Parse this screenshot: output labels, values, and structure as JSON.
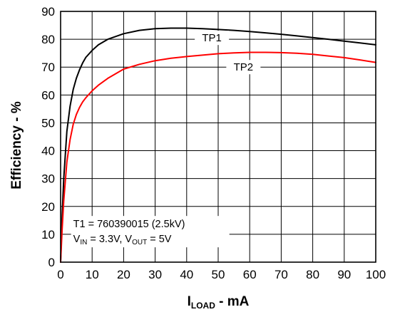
{
  "chart_data": {
    "type": "line",
    "xlabel": {
      "main": "I",
      "sub": "LOAD",
      "rest": " - mA"
    },
    "ylabel": "Efficiency - %",
    "xlim": [
      0,
      100
    ],
    "ylim": [
      0,
      90
    ],
    "x_ticks": [
      "0",
      "10",
      "20",
      "30",
      "40",
      "50",
      "60",
      "70",
      "80",
      "90",
      "100"
    ],
    "y_ticks": [
      "0",
      "10",
      "20",
      "30",
      "40",
      "50",
      "60",
      "70",
      "80",
      "90"
    ],
    "grid": true,
    "series": [
      {
        "name": "TP1",
        "color": "#000000",
        "x": [
          0,
          0.5,
          1,
          2,
          3,
          4,
          5,
          6,
          7,
          8,
          10,
          12,
          15,
          20,
          25,
          30,
          35,
          40,
          45,
          50,
          55,
          60,
          65,
          70,
          75,
          80,
          85,
          90,
          95,
          100
        ],
        "y": [
          0,
          17,
          30,
          47,
          56,
          62,
          66,
          69,
          71.5,
          73.5,
          76,
          78,
          80,
          82,
          83.2,
          83.8,
          84,
          84,
          83.8,
          83.5,
          83.2,
          82.8,
          82.3,
          81.8,
          81.2,
          80.6,
          80,
          79.3,
          78.7,
          78
        ]
      },
      {
        "name": "TP2",
        "color": "#ff0000",
        "x": [
          0,
          0.5,
          1,
          2,
          3,
          4,
          5,
          6,
          7,
          8,
          10,
          12,
          15,
          20,
          25,
          30,
          35,
          40,
          45,
          50,
          55,
          60,
          65,
          70,
          75,
          80,
          85,
          90,
          95,
          100
        ],
        "y": [
          0,
          12,
          22,
          36,
          44,
          49.5,
          53,
          55.5,
          57.5,
          59,
          61.5,
          63.5,
          66,
          69.3,
          71,
          72.3,
          73.2,
          73.8,
          74.3,
          74.8,
          75.1,
          75.3,
          75.3,
          75.2,
          75,
          74.6,
          74,
          73.4,
          72.6,
          71.7
        ]
      }
    ],
    "series_labels": [
      {
        "text": "TP1",
        "at": [
          48,
          80.5
        ]
      },
      {
        "text": "TP2",
        "at": [
          58,
          70
        ]
      }
    ],
    "annotation": {
      "line1": "T1 = 760390015 (2.5kV)",
      "line2": [
        {
          "text": "V"
        },
        {
          "text": "IN",
          "sub": true
        },
        {
          "text": " = 3.3V, V"
        },
        {
          "text": "OUT",
          "sub": true
        },
        {
          "text": " = 5V"
        }
      ],
      "at": [
        4,
        13
      ]
    }
  }
}
